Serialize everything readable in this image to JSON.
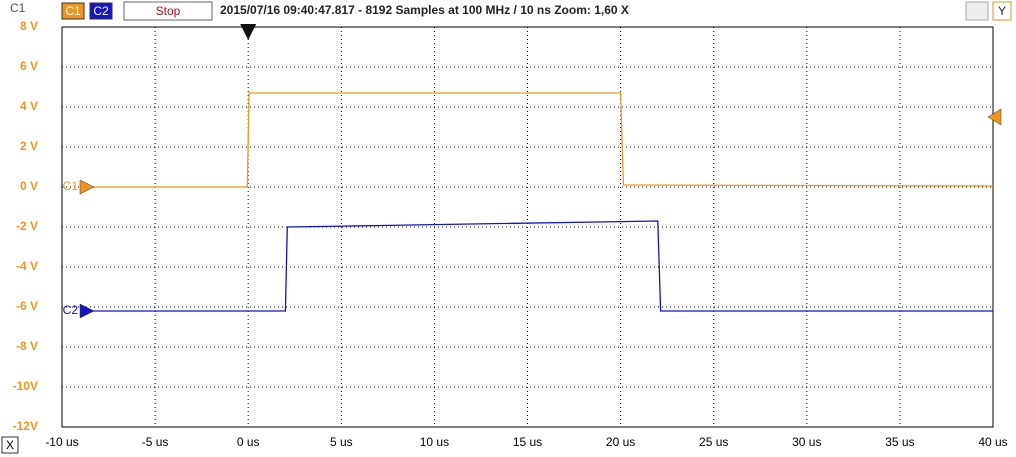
{
  "chart_data": {
    "type": "line",
    "title": "2015/07/16 09:40:47.817 - 8192 Samples at 100 MHz / 10 ns Zoom: 1,60 X",
    "y_label": "C1",
    "controls": {
      "stop": "Stop",
      "y": "Y",
      "x": "X"
    },
    "xlim": [
      -10,
      40
    ],
    "ylim": [
      -12,
      8
    ],
    "xticks": [
      {
        "value": -10,
        "label": "-10 us"
      },
      {
        "value": -5,
        "label": "-5 us"
      },
      {
        "value": 0,
        "label": "0 us"
      },
      {
        "value": 5,
        "label": "5 us"
      },
      {
        "value": 10,
        "label": "10 us"
      },
      {
        "value": 15,
        "label": "15 us"
      },
      {
        "value": 20,
        "label": "20 us"
      },
      {
        "value": 25,
        "label": "25 us"
      },
      {
        "value": 30,
        "label": "30 us"
      },
      {
        "value": 35,
        "label": "35 us"
      },
      {
        "value": 40,
        "label": "40 us"
      }
    ],
    "yticks": [
      {
        "value": 8,
        "label": "8 V"
      },
      {
        "value": 6,
        "label": "6 V"
      },
      {
        "value": 4,
        "label": "4 V"
      },
      {
        "value": 2,
        "label": "2 V"
      },
      {
        "value": 0,
        "label": "0 V"
      },
      {
        "value": -2,
        "label": "-2 V"
      },
      {
        "value": -4,
        "label": "-4 V"
      },
      {
        "value": -6,
        "label": "-6 V"
      },
      {
        "value": -8,
        "label": "-8 V"
      },
      {
        "value": -10,
        "label": "-10V"
      },
      {
        "value": -12,
        "label": "-12V"
      }
    ],
    "grid": true,
    "trigger_time": 0,
    "trigger_level": 3.5,
    "series": [
      {
        "name": "C1",
        "color": "#f0961e",
        "x": [
          -8.7,
          -0.05,
          0.05,
          20.0,
          20.15,
          40
        ],
        "values": [
          0,
          0,
          4.7,
          4.7,
          0.1,
          0.05
        ]
      },
      {
        "name": "C2",
        "color": "#1414c8",
        "x": [
          -8.7,
          2.0,
          2.1,
          22.0,
          22.15,
          40
        ],
        "values": [
          -6.2,
          -6.2,
          -2.0,
          -1.7,
          -6.2,
          -6.2
        ]
      }
    ]
  }
}
